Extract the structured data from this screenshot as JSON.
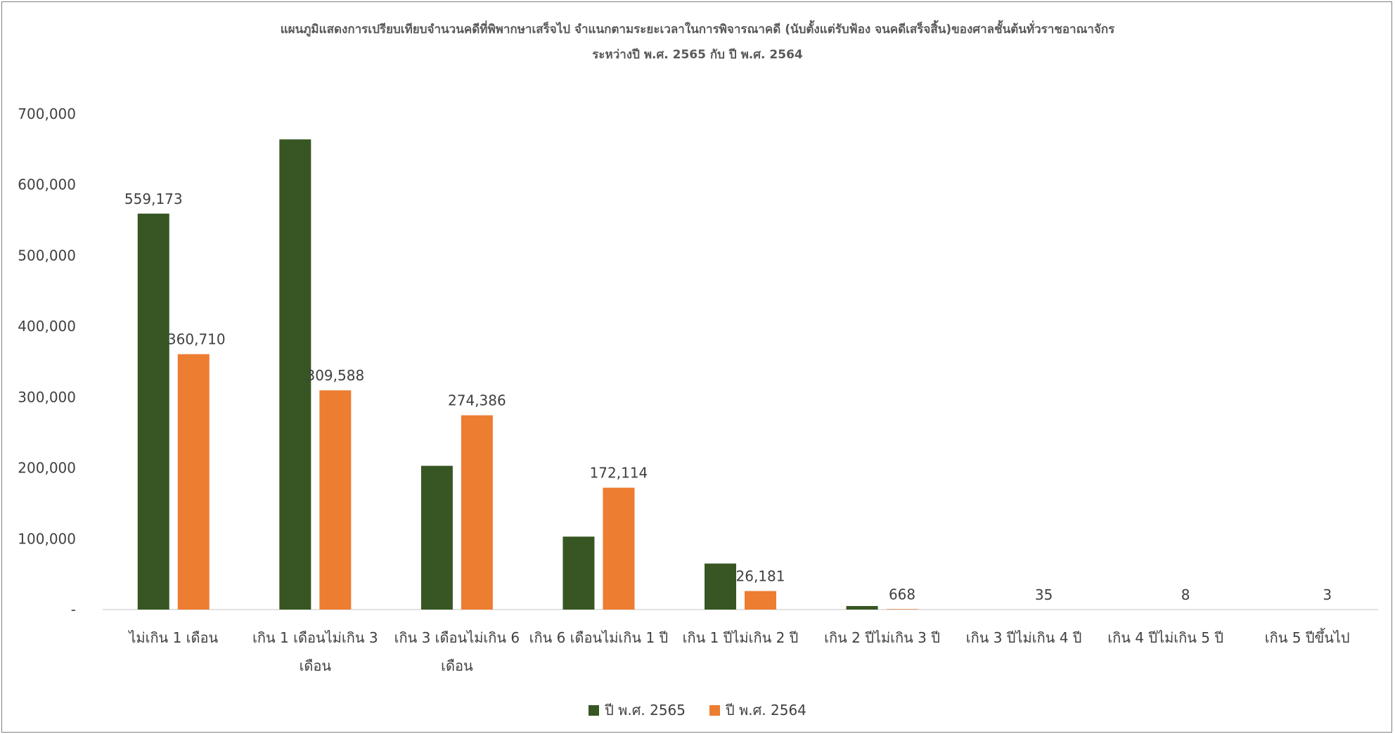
{
  "chart_data": {
    "type": "bar",
    "title": "แผนภูมิแสดงการเปรียบเทียบจำนวนคดีที่พิพากษาเสร็จไป จำแนกตามระยะเวลาในการพิจารณาคดี (นับตั้งแต่รับฟ้อง จนคดีเสร็จสิ้น)ของศาลชั้นต้นทั่วราชอาณาจักร",
    "subtitle": "ระหว่างปี พ.ศ. 2565 กับ ปี พ.ศ. 2564",
    "xlabel": "",
    "ylabel": "",
    "ylim": [
      0,
      700000
    ],
    "yticks": [
      0,
      100000,
      200000,
      300000,
      400000,
      500000,
      600000,
      700000
    ],
    "ytick_labels": [
      "-",
      "100,000",
      "200,000",
      "300,000",
      "400,000",
      "500,000",
      "600,000",
      "700,000"
    ],
    "grid": false,
    "legend_position": "bottom",
    "categories": [
      [
        "ไม่เกิน 1 เดือน"
      ],
      [
        "เกิน 1 เดือนไม่เกิน 3",
        "เดือน"
      ],
      [
        "เกิน 3 เดือนไม่เกิน 6",
        "เดือน"
      ],
      [
        "เกิน 6 เดือนไม่เกิน 1 ปี"
      ],
      [
        "เกิน 1 ปีไม่เกิน 2 ปี"
      ],
      [
        "เกิน 2 ปีไม่เกิน 3 ปี"
      ],
      [
        "เกิน 3 ปีไม่เกิน 4 ปี"
      ],
      [
        "เกิน 4 ปีไม่เกิน 5 ปี"
      ],
      [
        "เกิน 5 ปีขึ้นไป"
      ]
    ],
    "series": [
      {
        "name": "ปี พ.ศ. 2565",
        "color": "#375623",
        "values": [
          559173,
          664000,
          203000,
          103000,
          65000,
          5000,
          0,
          0,
          0
        ],
        "labels": [
          "559,173",
          "",
          "",
          "",
          "",
          "",
          "",
          "",
          ""
        ]
      },
      {
        "name": "ปี พ.ศ. 2564",
        "color": "#ED7D31",
        "values": [
          360710,
          309588,
          274386,
          172114,
          26181,
          668,
          35,
          8,
          3
        ],
        "labels": [
          "360,710",
          "309,588",
          "274,386",
          "172,114",
          "26,181",
          "668",
          "35",
          "8",
          "3"
        ]
      }
    ]
  }
}
